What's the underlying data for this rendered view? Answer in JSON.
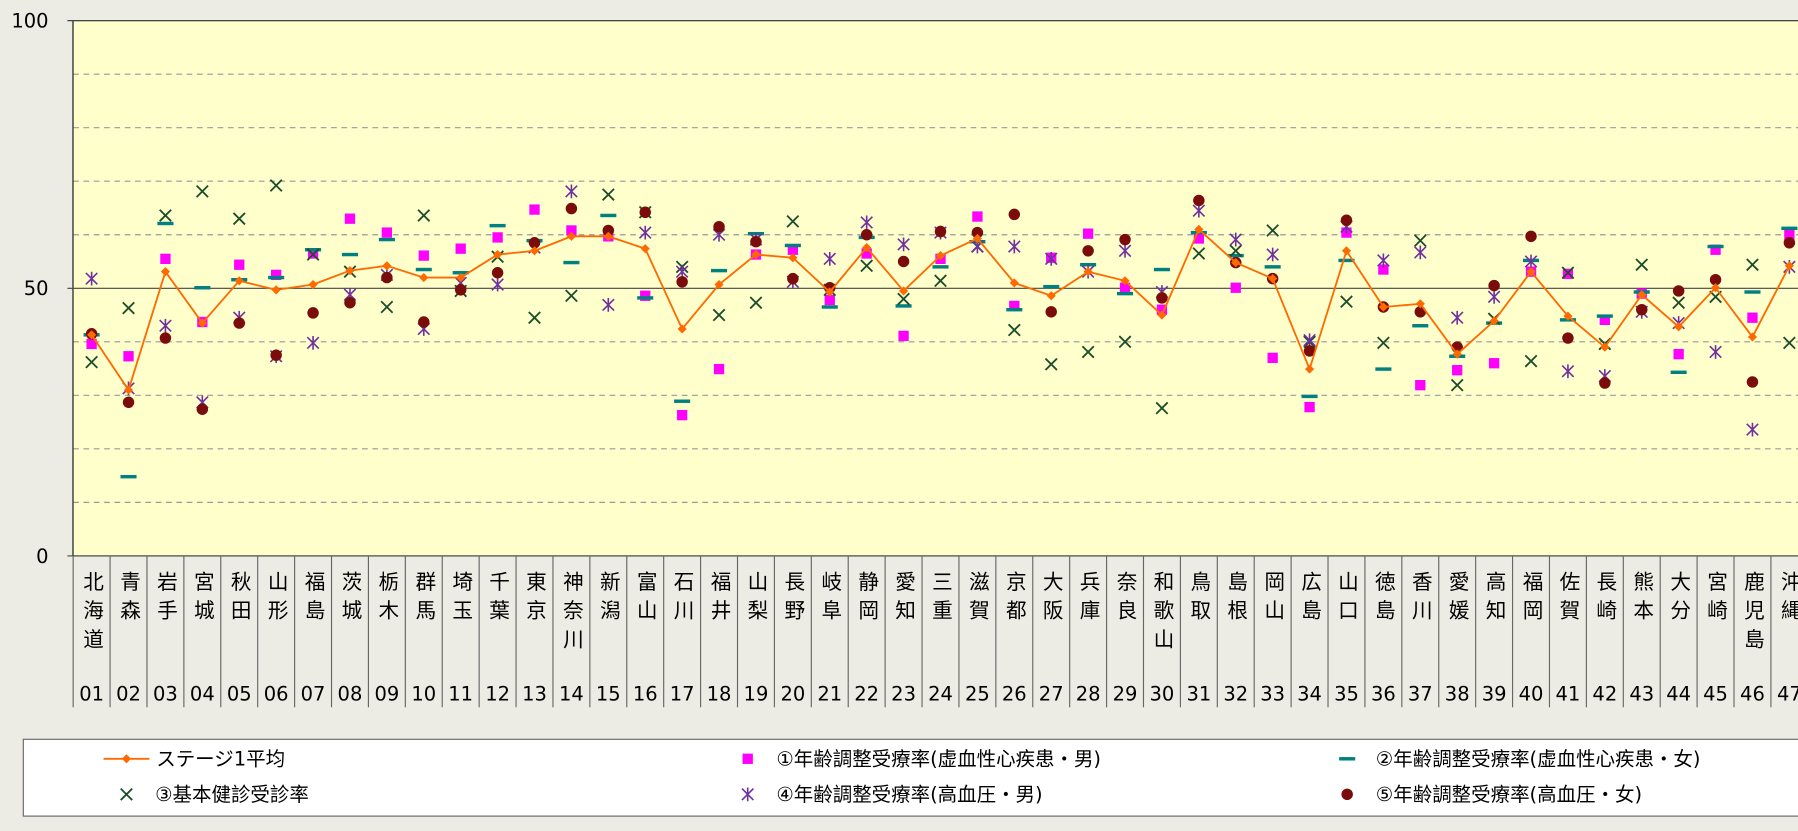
{
  "chart_data": {
    "type": "line",
    "categories": [
      "北海道",
      "青森",
      "岩手",
      "宮城",
      "秋田",
      "山形",
      "福島",
      "茨城",
      "栃木",
      "群馬",
      "埼玉",
      "千葉",
      "東京",
      "神奈川",
      "新潟",
      "富山",
      "石川",
      "福井",
      "山梨",
      "長野",
      "岐阜",
      "静岡",
      "愛知",
      "三重",
      "滋賀",
      "京都",
      "大阪",
      "兵庫",
      "奈良",
      "和歌山",
      "鳥取",
      "島根",
      "岡山",
      "広島",
      "山口",
      "徳島",
      "香川",
      "愛媛",
      "高知",
      "福岡",
      "佐賀",
      "長崎",
      "熊本",
      "大分",
      "宮崎",
      "鹿児島",
      "沖縄"
    ],
    "category_codes": [
      "01",
      "02",
      "03",
      "04",
      "05",
      "06",
      "07",
      "08",
      "09",
      "10",
      "11",
      "12",
      "13",
      "14",
      "15",
      "16",
      "17",
      "18",
      "19",
      "20",
      "21",
      "22",
      "23",
      "24",
      "25",
      "26",
      "27",
      "28",
      "29",
      "30",
      "31",
      "32",
      "33",
      "34",
      "35",
      "36",
      "37",
      "38",
      "39",
      "40",
      "41",
      "42",
      "43",
      "44",
      "45",
      "46",
      "47"
    ],
    "ylim": [
      0,
      100
    ],
    "yticks": [
      0,
      50,
      100
    ],
    "minor_grid": [
      10,
      20,
      30,
      40,
      60,
      70,
      80,
      90
    ],
    "series": [
      {
        "name": "ステージ1平均",
        "color": "#ff6a00",
        "marker": "diamond",
        "line": true,
        "values": [
          41.3,
          31,
          53.1,
          43.5,
          51.4,
          49.7,
          50.7,
          53.3,
          54.2,
          52,
          52,
          56.3,
          57,
          59.7,
          59.7,
          57.4,
          42.4,
          50.7,
          56.3,
          55.7,
          49.3,
          57.6,
          49.5,
          56.1,
          59.3,
          51,
          48.6,
          53.1,
          51.4,
          45,
          61,
          54.8,
          51.8,
          34.9,
          57,
          46.5,
          47.1,
          37.7,
          43.9,
          53.1,
          44.8,
          39,
          48.8,
          42.8,
          50.1,
          40.9,
          54.2
        ]
      },
      {
        "name": "①年齢調整受療率(虚血性心疾患・男)",
        "color": "#ff00ff",
        "marker": "square",
        "values": [
          39.6,
          37.3,
          55.5,
          43.7,
          54.4,
          52.5,
          56.5,
          63,
          60.4,
          56.1,
          57.4,
          59.5,
          64.7,
          60.8,
          59.7,
          48.6,
          26.3,
          34.9,
          56.3,
          57.2,
          47.8,
          56.5,
          41.1,
          55.5,
          63.4,
          46.7,
          55.7,
          60.2,
          50.1,
          46,
          59.3,
          50.1,
          37,
          27.8,
          60.4,
          53.5,
          31.9,
          34.7,
          36,
          53.1,
          52.7,
          44.1,
          49,
          37.7,
          57.2,
          44.5,
          60
        ]
      },
      {
        "name": "②年齢調整受療率(虚血性心疾患・女)",
        "color": "#008080",
        "marker": "dash",
        "values": [
          41.3,
          14.8,
          62.1,
          50.1,
          51.6,
          52,
          57.2,
          56.3,
          59.1,
          53.5,
          52.9,
          61.7,
          58.9,
          54.8,
          63.6,
          48.2,
          28.9,
          53.3,
          60.2,
          58,
          46.5,
          59.5,
          46.7,
          54,
          58.7,
          46,
          50.3,
          54.4,
          49,
          53.5,
          60.4,
          56.1,
          54,
          29.8,
          55.2,
          34.9,
          43,
          37.3,
          43.5,
          55.2,
          44.1,
          44.8,
          49.3,
          34.3,
          57.8,
          49.3,
          61.2
        ]
      },
      {
        "name": "③基本健診受診率",
        "color": "#1e4d2b",
        "marker": "x",
        "values": [
          36.2,
          46.3,
          63.6,
          68.1,
          63,
          69.2,
          56.3,
          53.1,
          46.5,
          63.6,
          49.5,
          55.9,
          44.5,
          48.6,
          67.5,
          64.2,
          54,
          45,
          47.3,
          62.5,
          49.7,
          54.2,
          48,
          51.4,
          57.8,
          42.2,
          35.8,
          38.1,
          40,
          27.6,
          56.5,
          57,
          60.8,
          40,
          47.5,
          39.8,
          58.9,
          31.9,
          44.3,
          36.4,
          52.9,
          39.6,
          54.4,
          47.3,
          48.4,
          54.4,
          39.8
        ]
      },
      {
        "name": "④年齢調整受療率(高血圧・男)",
        "color": "#7030a0",
        "marker": "asterisk",
        "values": [
          51.8,
          31.3,
          43,
          28.7,
          44.5,
          37.3,
          39.8,
          48.8,
          52.5,
          42.4,
          51,
          50.7,
          57.6,
          68.1,
          46.9,
          60.4,
          53.1,
          60,
          59.1,
          51.2,
          55.5,
          62.3,
          58.2,
          60.4,
          57.8,
          57.8,
          55.5,
          53.1,
          57,
          49.3,
          64.5,
          59.1,
          56.3,
          40.3,
          61.5,
          55.2,
          56.7,
          44.5,
          48.4,
          55,
          34.5,
          33.6,
          45.6,
          43.5,
          38.1,
          23.6,
          54
        ]
      },
      {
        "name": "⑤年齢調整受療率(高血圧・女)",
        "color": "#7a0c0c",
        "marker": "circle",
        "values": [
          41.5,
          28.7,
          40.7,
          27.4,
          43.5,
          37.5,
          45.4,
          47.3,
          52,
          43.7,
          49.7,
          52.9,
          58.5,
          64.9,
          60.8,
          64.2,
          51.2,
          61.5,
          58.7,
          51.8,
          50.1,
          60,
          55,
          60.6,
          60.4,
          63.8,
          45.6,
          57,
          59.1,
          48.2,
          66.4,
          54.8,
          51.8,
          38.3,
          62.7,
          46.5,
          45.6,
          39,
          50.5,
          59.7,
          40.7,
          32.3,
          46,
          49.5,
          51.6,
          32.5,
          58.5
        ]
      }
    ]
  }
}
